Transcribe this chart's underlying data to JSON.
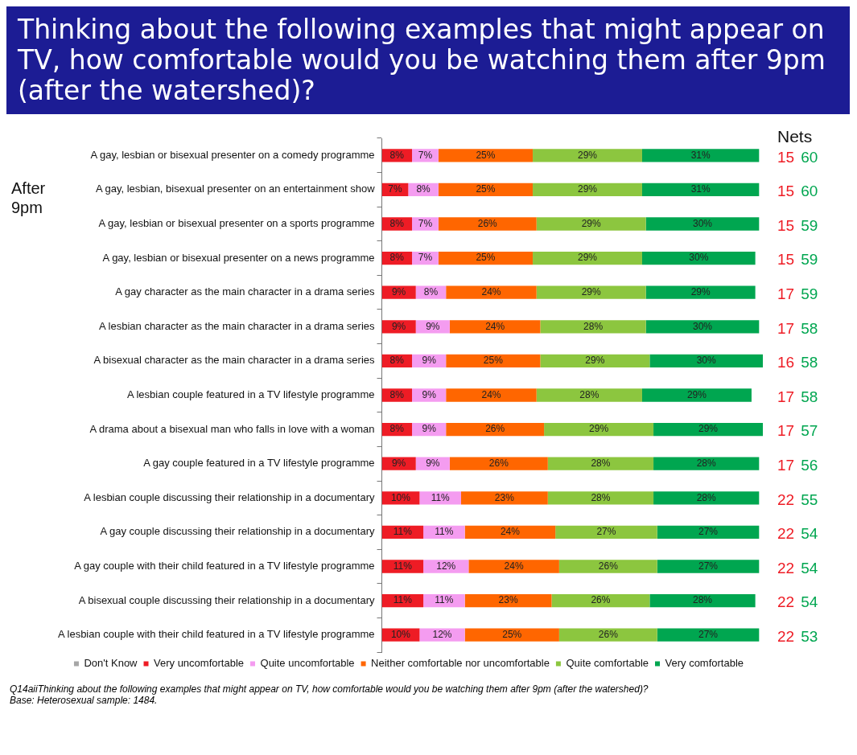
{
  "chart_data": {
    "type": "bar",
    "orientation": "horizontal",
    "stacked": true,
    "title": "Thinking about the following examples that might appear on TV, how comfortable would you be watching them after 9pm (after the watershed)?",
    "categories": [
      "A gay, lesbian or bisexual presenter on a comedy programme",
      "A gay, lesbian, bisexual presenter on an entertainment show",
      "A gay, lesbian or bisexual presenter on a sports programme",
      "A gay, lesbian or bisexual presenter on a news programme",
      "A gay character as the main character in a drama series",
      "A lesbian character as the main character in a drama series",
      "A bisexual character as the main character in a drama series",
      "A lesbian couple featured in a TV lifestyle programme",
      "A drama about a bisexual man who falls in love with a woman",
      "A gay couple featured in a TV lifestyle programme",
      "A lesbian couple discussing their relationship in a documentary",
      "A gay couple discussing their relationship in a documentary",
      "A gay couple with their child featured in a TV lifestyle programme",
      "A bisexual couple discussing their relationship in a documentary",
      "A lesbian couple with their child featured in a TV lifestyle programme"
    ],
    "series": [
      {
        "name": "Don't Know",
        "color": "#a6a6a6",
        "values": [
          0,
          0,
          0,
          0,
          0,
          0,
          0,
          0,
          0,
          0,
          0,
          0,
          0,
          0,
          0
        ],
        "value_labels": [
          null,
          null,
          null,
          null,
          null,
          null,
          null,
          null,
          null,
          null,
          null,
          null,
          null,
          null,
          null
        ]
      },
      {
        "name": "Very uncomfortable",
        "color": "#ee1c25",
        "values": [
          8,
          7,
          8,
          8,
          9,
          9,
          8,
          8,
          8,
          9,
          10,
          11,
          11,
          11,
          10
        ],
        "value_labels": [
          "8%",
          "7%",
          "8%",
          "8%",
          "9%",
          "9%",
          "8%",
          "8%",
          "8%",
          "9%",
          "10%",
          "11%",
          "11%",
          "11%",
          "10%"
        ]
      },
      {
        "name": "Quite uncomfortable",
        "color": "#f49cf0",
        "values": [
          7,
          8,
          7,
          7,
          8,
          9,
          9,
          9,
          9,
          9,
          11,
          11,
          12,
          11,
          12
        ],
        "value_labels": [
          "7%",
          "8%",
          "7%",
          "7%",
          "8%",
          "9%",
          "9%",
          "9%",
          "9%",
          "9%",
          "11%",
          "11%",
          "12%",
          "11%",
          "12%"
        ]
      },
      {
        "name": "Neither comfortable nor uncomfortable",
        "color": "#ff6600",
        "values": [
          25,
          25,
          26,
          25,
          24,
          24,
          25,
          24,
          26,
          26,
          23,
          24,
          24,
          23,
          25
        ],
        "value_labels": [
          "25%",
          "25%",
          "26%",
          "25%",
          "24%",
          "24%",
          "25%",
          "24%",
          "26%",
          "26%",
          "23%",
          "24%",
          "24%",
          "23%",
          "25%"
        ]
      },
      {
        "name": "Quite comfortable",
        "color": "#8cc63f",
        "values": [
          29,
          29,
          29,
          29,
          29,
          28,
          29,
          28,
          29,
          28,
          28,
          27,
          26,
          26,
          26
        ],
        "value_labels": [
          "29%",
          "29%",
          "29%",
          "29%",
          "29%",
          "28%",
          "29%",
          "28%",
          "29%",
          "28%",
          "28%",
          "27%",
          "26%",
          "26%",
          "26%"
        ]
      },
      {
        "name": "Very comfortable",
        "color": "#00a650",
        "values": [
          31,
          31,
          30,
          30,
          29,
          30,
          30,
          29,
          29,
          28,
          28,
          27,
          27,
          28,
          27
        ],
        "value_labels": [
          "31%",
          "31%",
          "30%",
          "30%",
          "29%",
          "30%",
          "30%",
          "29%",
          "29%",
          "28%",
          "28%",
          "27%",
          "27%",
          "28%",
          "27%"
        ]
      }
    ],
    "legend": "bottom",
    "grid": false,
    "tick_labels": "y",
    "annotations": [
      "After 9pm",
      "Nets",
      "Q14aiiThinking about the following examples that might appear on TV, how comfortable would you be watching them after 9pm (after the watershed)?",
      "Base: Heterosexual sample: 1484.",
      "15 60",
      "15 60",
      "15 59",
      "15 59",
      "17 59",
      "17 58",
      "16 58",
      "17 58",
      "17 57",
      "17 56",
      "22 55",
      "22 54",
      "22 54",
      "22 54",
      "22 53"
    ]
  }
}
